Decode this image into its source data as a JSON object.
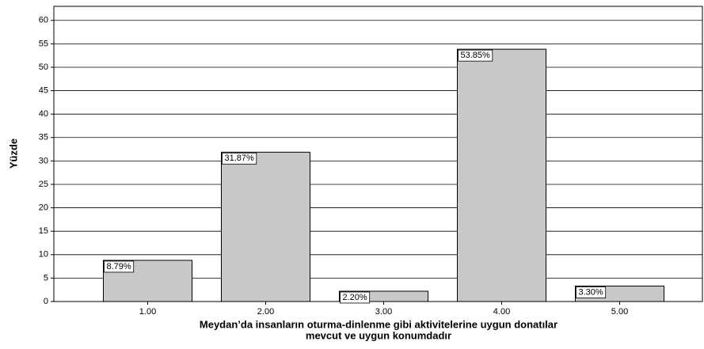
{
  "chart_data": {
    "type": "bar",
    "ylabel": "Yüzde",
    "xlabel": [
      "Meydan’da insanların oturma-dinlenme gibi aktivitelerine uygun donatılar",
      "mevcut ve uygun konumdadır"
    ],
    "categories": [
      "1.00",
      "2.00",
      "3.00",
      "4.00",
      "5.00"
    ],
    "values": [
      8.79,
      31.87,
      2.2,
      53.85,
      3.3
    ],
    "value_labels": [
      "8.79%",
      "31.87%",
      "2.20%",
      "53.85%",
      "3.30%"
    ],
    "color": "#c8c8c8",
    "ylim": [
      0,
      63
    ],
    "yticks": [
      0,
      5,
      10,
      15,
      20,
      25,
      30,
      35,
      40,
      45,
      50,
      55,
      60
    ],
    "grid": true
  }
}
